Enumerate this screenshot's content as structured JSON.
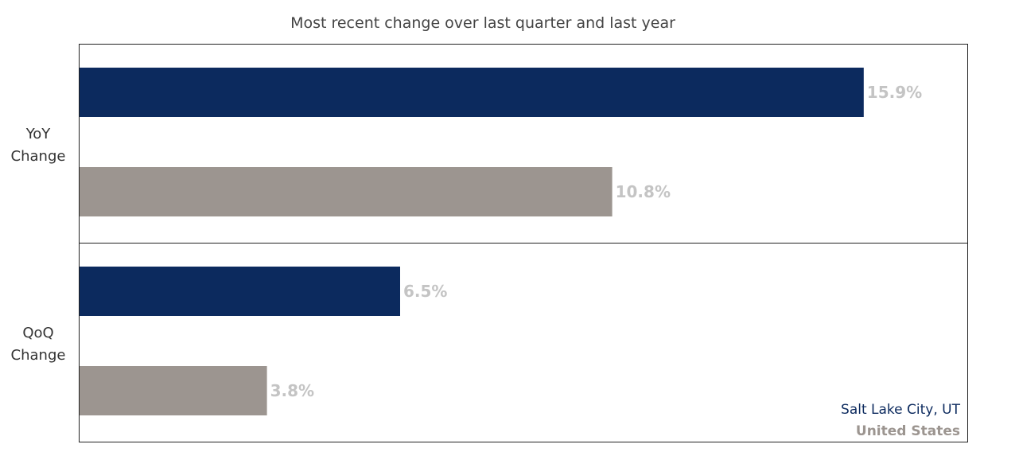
{
  "chart_data": {
    "type": "bar",
    "orientation": "horizontal",
    "title": "Most recent change over last quarter and last year",
    "categories": [
      {
        "label_lines": [
          "YoY",
          "Change"
        ]
      },
      {
        "label_lines": [
          "QoQ",
          "Change"
        ]
      }
    ],
    "series": [
      {
        "name": "Salt Lake City, UT",
        "color": "#0c2a5e",
        "values": [
          15.9,
          6.5
        ],
        "labels": [
          "15.9%",
          "6.5%"
        ]
      },
      {
        "name": "United States",
        "color": "#9c9590",
        "values": [
          10.8,
          3.8
        ],
        "labels": [
          "10.8%",
          "3.8%"
        ]
      }
    ],
    "xlim": [
      0,
      18
    ],
    "grid": false,
    "legend_placement": "bottom-right"
  }
}
